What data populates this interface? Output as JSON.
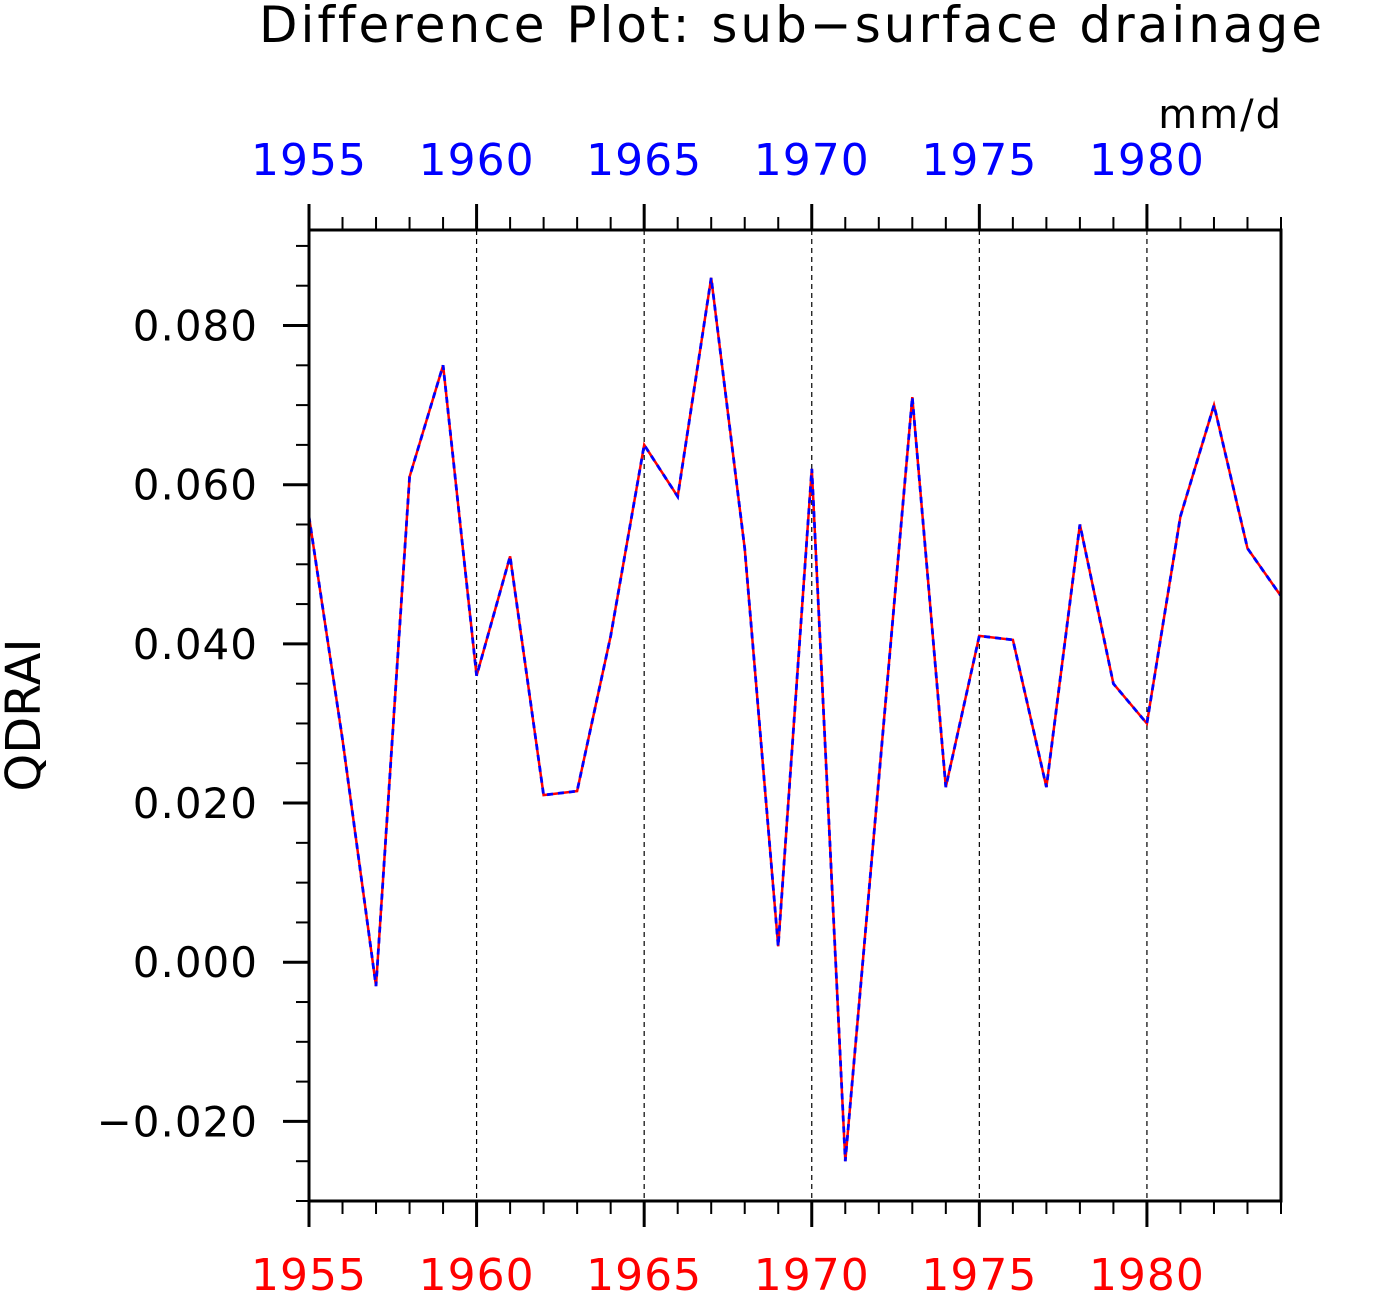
{
  "chart_data": {
    "type": "line",
    "title": "Difference Plot: sub−surface drainage",
    "units": "mm/d",
    "ylabel": "QDRAI",
    "xlim": [
      1955,
      1984
    ],
    "ylim": [
      -0.03,
      0.092
    ],
    "y_ticks": [
      -0.02,
      0.0,
      0.02,
      0.04,
      0.06,
      0.08
    ],
    "y_tick_labels": [
      "−0.020",
      "0.000",
      "0.020",
      "0.040",
      "0.060",
      "0.080"
    ],
    "x_ticks": [
      1955,
      1960,
      1965,
      1970,
      1975,
      1980
    ],
    "x_tick_labels_bottom": [
      "1955",
      "1960",
      "1965",
      "1970",
      "1975",
      "1980"
    ],
    "x_tick_labels_top": [
      "1955",
      "1960",
      "1965",
      "1970",
      "1975",
      "1980"
    ],
    "grid": "vertical dashed at major x ticks",
    "colors": {
      "bottom_axis_labels": "#ff0000",
      "top_axis_labels": "#0000ff",
      "line_red": "#ff0000",
      "line_blue": "#0000ff"
    },
    "x": [
      1955,
      1956,
      1957,
      1958,
      1959,
      1960,
      1961,
      1962,
      1963,
      1964,
      1965,
      1966,
      1967,
      1968,
      1969,
      1970,
      1971,
      1972,
      1973,
      1974,
      1975,
      1976,
      1977,
      1978,
      1979,
      1980,
      1981,
      1982,
      1983,
      1984
    ],
    "series": [
      {
        "color": "#ff0000",
        "values": [
          0.056,
          0.028,
          -0.003,
          0.061,
          0.075,
          0.036,
          0.051,
          0.021,
          0.0215,
          0.041,
          0.065,
          0.0585,
          0.086,
          0.052,
          0.002,
          0.062,
          -0.025,
          0.023,
          0.071,
          0.022,
          0.041,
          0.0405,
          0.022,
          0.055,
          0.035,
          0.03,
          0.056,
          0.07,
          0.052,
          0.046
        ]
      },
      {
        "color": "#0000ff",
        "values": [
          0.056,
          0.028,
          -0.003,
          0.061,
          0.075,
          0.036,
          0.051,
          0.021,
          0.0215,
          0.041,
          0.065,
          0.0585,
          0.086,
          0.052,
          0.002,
          0.062,
          -0.025,
          0.023,
          0.071,
          0.022,
          0.041,
          0.0405,
          0.022,
          0.055,
          0.035,
          0.03,
          0.056,
          0.07,
          0.052,
          0.046
        ]
      }
    ]
  }
}
